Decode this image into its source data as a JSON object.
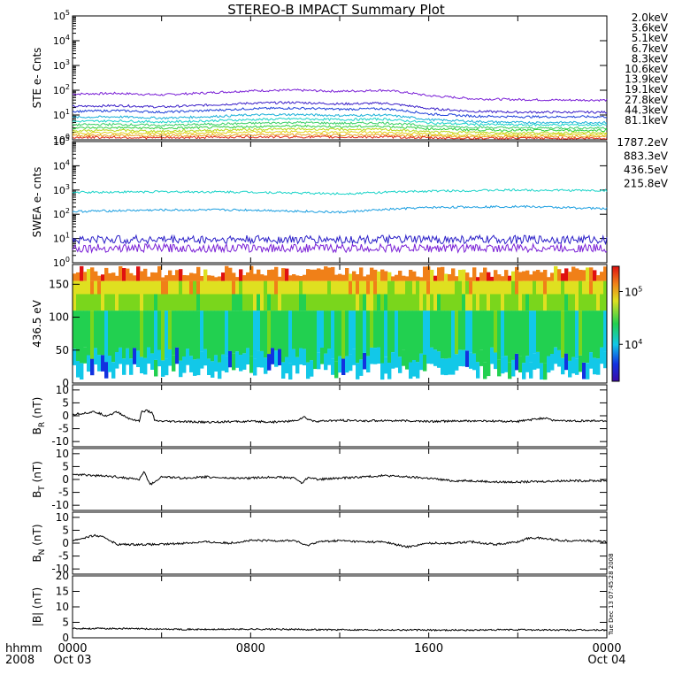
{
  "title": "STEREO-B IMPACT Summary Plot",
  "footer": {
    "left_top": "hhmm",
    "left_bottom": "2008",
    "tick_times": [
      "0000",
      "0800",
      "1600",
      "0000"
    ],
    "tick_dates": [
      "Oct 03",
      "",
      "",
      "Oct 04"
    ]
  },
  "stamp": "Tue Dec 13 07:45:28 2008",
  "colors": {
    "purple": "#7a1fd6",
    "indigo": "#3a1fc8",
    "blue": "#1d3fd8",
    "cyan": "#1ab0d8",
    "aqua": "#19d3c8",
    "green": "#30d040",
    "lime": "#7ad61c",
    "yellow": "#e2d21a",
    "gold": "#eaa21a",
    "orange": "#ee7a18",
    "red": "#de2a18"
  },
  "chart_data": [
    {
      "type": "line",
      "ylabel": "STE e- Cnts",
      "yscale": "log",
      "ylim": [
        1,
        100000
      ],
      "ytick_labels": [
        "10^0",
        "10^1",
        "10^2",
        "10^3",
        "10^4",
        "10^5"
      ],
      "x_range_hours": [
        0,
        24
      ],
      "series": [
        {
          "name": "2.0keV",
          "color": "#7a1fd6",
          "x": [
            0,
            2,
            4,
            6,
            8,
            10,
            12,
            14,
            16,
            18,
            20,
            22,
            24
          ],
          "values": [
            70,
            75,
            65,
            78,
            95,
            100,
            90,
            100,
            60,
            45,
            42,
            40,
            40
          ]
        },
        {
          "name": "3.6keV",
          "color": "#3a1fc8",
          "x": [
            0,
            2,
            4,
            6,
            8,
            10,
            12,
            14,
            16,
            18,
            20,
            22,
            24
          ],
          "values": [
            22,
            24,
            21,
            25,
            30,
            32,
            28,
            30,
            18,
            14,
            13,
            13,
            13
          ]
        },
        {
          "name": "5.1keV",
          "color": "#1d3fd8",
          "x": [
            0,
            2,
            4,
            6,
            8,
            10,
            12,
            14,
            16,
            18,
            20,
            22,
            24
          ],
          "values": [
            14,
            15,
            13,
            15,
            18,
            19,
            17,
            18,
            11,
            9,
            8.5,
            8.5,
            8.5
          ]
        },
        {
          "name": "6.7keV",
          "color": "#1ab0d8",
          "x": [
            0,
            2,
            4,
            6,
            8,
            10,
            12,
            14,
            16,
            18,
            20,
            22,
            24
          ],
          "values": [
            8,
            8.5,
            7.5,
            8.5,
            10,
            10.5,
            9.5,
            10,
            6.5,
            5.5,
            5,
            5,
            5
          ]
        },
        {
          "name": "8.3keV",
          "color": "#19d3c8",
          "x": [
            0,
            2,
            4,
            6,
            8,
            10,
            12,
            14,
            16,
            18,
            20,
            22,
            24
          ],
          "values": [
            5.5,
            5.8,
            5.2,
            5.8,
            6.5,
            7,
            6.5,
            6.8,
            4.8,
            4.2,
            4,
            4,
            4
          ]
        },
        {
          "name": "10.6keV",
          "color": "#38cf64",
          "x": [
            0,
            2,
            4,
            6,
            8,
            10,
            12,
            14,
            16,
            18,
            20,
            22,
            24
          ],
          "values": [
            4,
            4.2,
            3.8,
            4.2,
            4.6,
            5,
            4.6,
            4.8,
            3.6,
            3.2,
            3,
            3,
            3
          ]
        },
        {
          "name": "13.9keV",
          "color": "#30d040",
          "x": [
            0,
            2,
            4,
            6,
            8,
            10,
            12,
            14,
            16,
            18,
            20,
            22,
            24
          ],
          "values": [
            3,
            3.1,
            2.9,
            3.1,
            3.4,
            3.6,
            3.4,
            3.5,
            2.8,
            2.5,
            2.4,
            2.4,
            2.4
          ]
        },
        {
          "name": "19.1keV",
          "color": "#b8d81a",
          "x": [
            0,
            2,
            4,
            6,
            8,
            10,
            12,
            14,
            16,
            18,
            20,
            22,
            24
          ],
          "values": [
            2.3,
            2.4,
            2.2,
            2.4,
            2.6,
            2.7,
            2.6,
            2.6,
            2.1,
            2,
            1.9,
            1.9,
            1.9
          ]
        },
        {
          "name": "27.8keV",
          "color": "#e2d21a",
          "x": [
            0,
            2,
            4,
            6,
            8,
            10,
            12,
            14,
            16,
            18,
            20,
            22,
            24
          ],
          "values": [
            1.8,
            1.9,
            1.8,
            1.9,
            2,
            2.1,
            2,
            2,
            1.7,
            1.6,
            1.6,
            1.6,
            1.6
          ]
        },
        {
          "name": "44.3keV",
          "color": "#eaa21a",
          "x": [
            0,
            2,
            4,
            6,
            8,
            10,
            12,
            14,
            16,
            18,
            20,
            22,
            24
          ],
          "values": [
            1.5,
            1.5,
            1.45,
            1.5,
            1.6,
            1.6,
            1.55,
            1.6,
            1.4,
            1.35,
            1.35,
            1.35,
            1.35
          ]
        },
        {
          "name": "81.1keV",
          "color": "#de2a18",
          "x": [
            0,
            2,
            4,
            6,
            8,
            10,
            12,
            14,
            16,
            18,
            20,
            22,
            24
          ],
          "values": [
            1.25,
            1.25,
            1.2,
            1.25,
            1.3,
            1.3,
            1.28,
            1.3,
            1.2,
            1.15,
            1.15,
            1.15,
            1.15
          ]
        }
      ]
    },
    {
      "type": "line",
      "ylabel": "SWEA e- cnts",
      "yscale": "log",
      "ylim": [
        1,
        100000
      ],
      "ytick_labels": [
        "10^0",
        "10^1",
        "10^2",
        "10^3",
        "10^4",
        "10^5"
      ],
      "x_range_hours": [
        0,
        24
      ],
      "series": [
        {
          "name": "1787.2eV",
          "color": "#7a1fd6",
          "x": [
            0,
            6,
            12,
            18,
            24
          ],
          "values": [
            4,
            4,
            4,
            4,
            4
          ]
        },
        {
          "name": "883.3eV",
          "color": "#2a1ec8",
          "x": [
            0,
            6,
            12,
            18,
            24
          ],
          "values": [
            9,
            9,
            9,
            9,
            9
          ]
        },
        {
          "name": "436.5eV",
          "color": "#1a9ee0",
          "x": [
            0,
            4,
            8,
            12,
            16,
            20,
            24
          ],
          "values": [
            130,
            150,
            150,
            120,
            190,
            210,
            170
          ]
        },
        {
          "name": "215.8eV",
          "color": "#19d3c8",
          "x": [
            0,
            4,
            8,
            12,
            16,
            20,
            24
          ],
          "values": [
            800,
            850,
            820,
            700,
            900,
            1000,
            950
          ]
        }
      ]
    },
    {
      "type": "heatmap",
      "ylabel": "436.5 eV",
      "ylim": [
        0,
        180
      ],
      "yticks": [
        0,
        50,
        100,
        150
      ],
      "colorbar": {
        "scale": "log",
        "range": [
          2000,
          300000
        ],
        "tick_labels": [
          "10^4",
          "10^5"
        ]
      },
      "x_range_hours": [
        0,
        24
      ]
    },
    {
      "type": "line",
      "ylabel": "B_R (nT)",
      "ylim": [
        -12,
        12
      ],
      "yticks": [
        10,
        5,
        0,
        -5,
        -10
      ],
      "x": [
        0,
        0.5,
        1,
        1.5,
        2,
        2.5,
        3,
        3.1,
        3.3,
        3.6,
        3.7,
        4,
        5,
        6,
        7,
        8,
        9,
        10,
        10.4,
        10.6,
        11,
        12,
        13,
        14,
        16,
        18,
        20,
        21.3,
        21.6,
        22,
        24
      ],
      "values": [
        0.5,
        1,
        1.5,
        0,
        1.5,
        -1,
        -2,
        1.5,
        2,
        1,
        -2,
        -2.2,
        -2.3,
        -2.5,
        -2.3,
        -2.2,
        -2.4,
        -2,
        -0.5,
        -1.5,
        -2.2,
        -1.8,
        -2,
        -1.8,
        -2.2,
        -2,
        -2.2,
        -0.8,
        -1.8,
        -2,
        -2
      ]
    },
    {
      "type": "line",
      "ylabel": "B_T (nT)",
      "ylim": [
        -12,
        12
      ],
      "yticks": [
        10,
        5,
        0,
        -5,
        -10
      ],
      "x": [
        0,
        1,
        2,
        3,
        3.2,
        3.5,
        4,
        5,
        6,
        7,
        8,
        9,
        10,
        10.3,
        10.6,
        11,
        12,
        13,
        14,
        15,
        16,
        17,
        18,
        19,
        20,
        21,
        22,
        23,
        24
      ],
      "values": [
        2,
        1.5,
        1,
        0,
        3,
        -2,
        1,
        0.5,
        1,
        0.5,
        0.5,
        1,
        0.5,
        -1.5,
        1,
        0,
        0.5,
        1,
        1.5,
        1,
        0.5,
        -0.5,
        -0.5,
        -1,
        -1,
        -0.8,
        -0.5,
        -0.5,
        -0.5
      ]
    },
    {
      "type": "line",
      "ylabel": "B_N (nT)",
      "ylim": [
        -12,
        12
      ],
      "yticks": [
        10,
        5,
        0,
        -5,
        -10
      ],
      "x": [
        0,
        0.5,
        1,
        1.5,
        2,
        3,
        4,
        5,
        6,
        7,
        8,
        9,
        10,
        10.5,
        11,
        12,
        13,
        14,
        15,
        16,
        17,
        18,
        19,
        20,
        20.5,
        21,
        22,
        23,
        24
      ],
      "values": [
        1,
        2,
        3,
        2,
        -0.5,
        -0.5,
        -0.5,
        0,
        0.5,
        0,
        1,
        1,
        1,
        -1,
        0.5,
        1,
        0.5,
        0.5,
        -1.5,
        0,
        0,
        0.5,
        -0.5,
        0.5,
        2,
        2,
        1,
        1,
        0.5
      ]
    },
    {
      "type": "line",
      "ylabel": "|B| (nT)",
      "ylim": [
        0,
        20
      ],
      "yticks": [
        0,
        5,
        10,
        15,
        20
      ],
      "x": [
        0,
        2,
        4,
        6,
        8,
        10,
        12,
        14,
        16,
        18,
        20,
        22,
        24
      ],
      "values": [
        3,
        3,
        2.8,
        2.7,
        2.8,
        2.7,
        2.6,
        2.6,
        2.5,
        2.5,
        2.6,
        2.5,
        2.5
      ]
    }
  ]
}
